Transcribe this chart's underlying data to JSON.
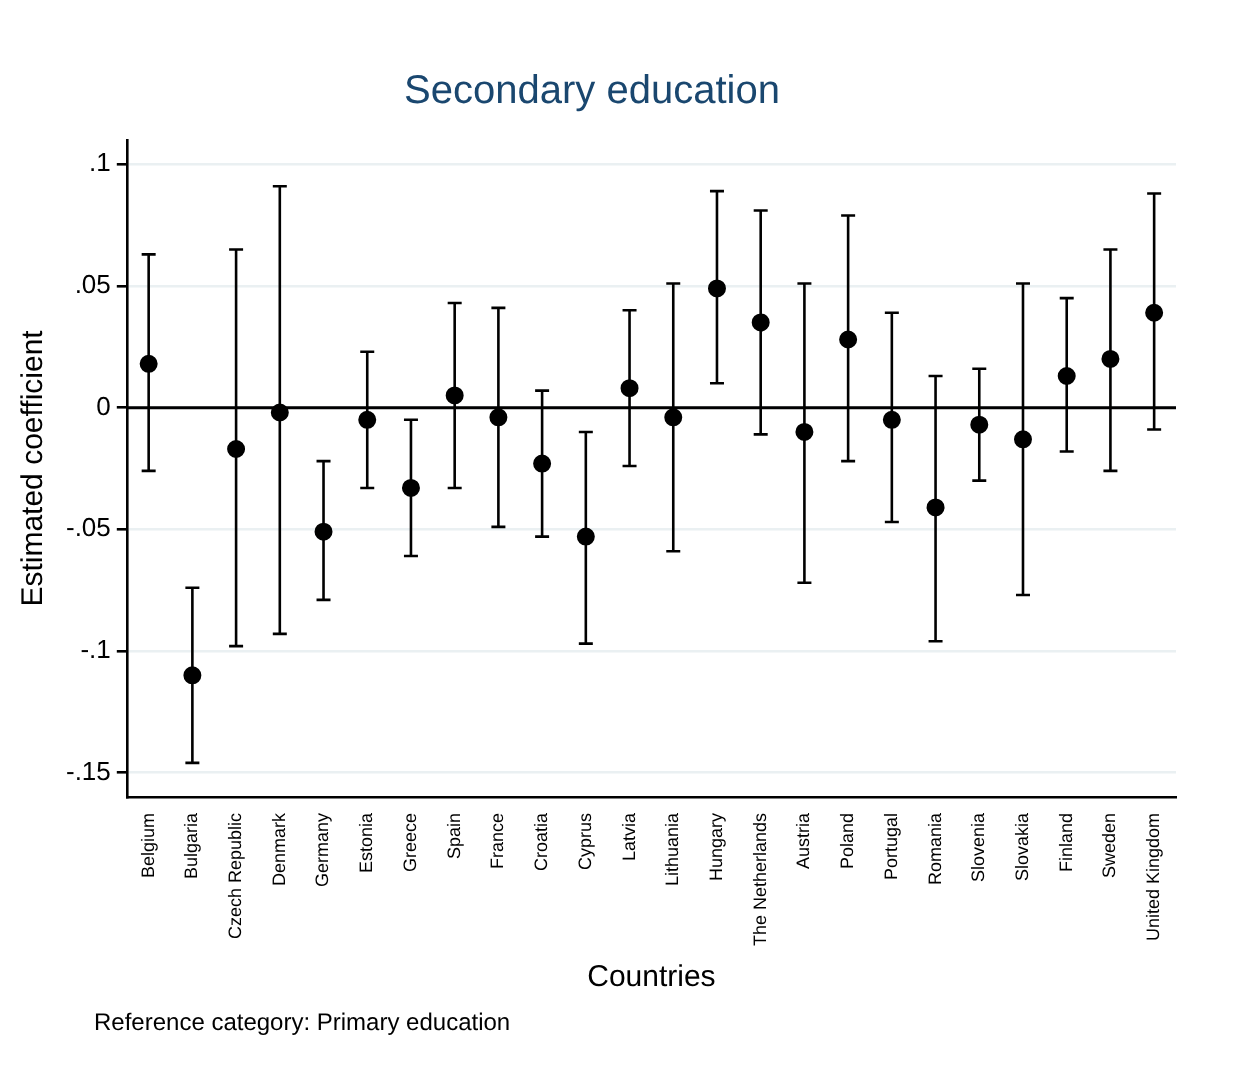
{
  "chart_data": {
    "type": "scatter",
    "title": "Secondary education",
    "xlabel": "Countries",
    "ylabel": "Estimated coefficient",
    "annotations": [
      "Reference category: Primary education"
    ],
    "categories": [
      "Belgium",
      "Bulgaria",
      "Czech Republic",
      "Denmark",
      "Germany",
      "Estonia",
      "Greece",
      "Spain",
      "France",
      "Croatia",
      "Cyprus",
      "Latvia",
      "Lithuania",
      "Hungary",
      "The Netherlands",
      "Austria",
      "Poland",
      "Portugal",
      "Romania",
      "Slovenia",
      "Slovakia",
      "Finland",
      "Sweden",
      "United Kingdom"
    ],
    "values": [
      0.018,
      -0.11,
      -0.017,
      -0.002,
      -0.051,
      -0.005,
      -0.033,
      0.005,
      -0.004,
      -0.023,
      -0.053,
      0.008,
      -0.004,
      0.049,
      0.035,
      -0.01,
      0.028,
      -0.005,
      -0.041,
      -0.007,
      -0.013,
      0.013,
      0.02,
      0.039
    ],
    "errors": [
      [
        -0.026,
        0.063
      ],
      [
        -0.146,
        -0.074
      ],
      [
        -0.098,
        0.065
      ],
      [
        -0.093,
        0.091
      ],
      [
        -0.079,
        -0.022
      ],
      [
        -0.033,
        0.023
      ],
      [
        -0.061,
        -0.005
      ],
      [
        -0.033,
        0.043
      ],
      [
        -0.049,
        0.041
      ],
      [
        -0.053,
        0.007
      ],
      [
        -0.097,
        -0.01
      ],
      [
        -0.024,
        0.04
      ],
      [
        -0.059,
        0.051
      ],
      [
        0.01,
        0.089
      ],
      [
        -0.011,
        0.081
      ],
      [
        -0.072,
        0.051
      ],
      [
        -0.022,
        0.079
      ],
      [
        -0.047,
        0.039
      ],
      [
        -0.096,
        0.013
      ],
      [
        -0.03,
        0.016
      ],
      [
        -0.077,
        0.051
      ],
      [
        -0.018,
        0.045
      ],
      [
        -0.026,
        0.065
      ],
      [
        -0.009,
        0.088
      ]
    ],
    "color": "#000000",
    "ylim": [
      -0.16,
      0.11
    ],
    "yticks": [
      {
        "value": 0.1,
        "label": ".1"
      },
      {
        "value": 0.05,
        "label": ".05"
      },
      {
        "value": 0,
        "label": "0"
      },
      {
        "value": -0.05,
        "label": "-.05"
      },
      {
        "value": -0.1,
        "label": "-.1"
      },
      {
        "value": -0.15,
        "label": "-.15"
      }
    ],
    "ref_lines": [
      {
        "axis": "y",
        "value": 0,
        "color": "#000000"
      }
    ],
    "grid": "y",
    "legend": false,
    "marker": "circle"
  }
}
